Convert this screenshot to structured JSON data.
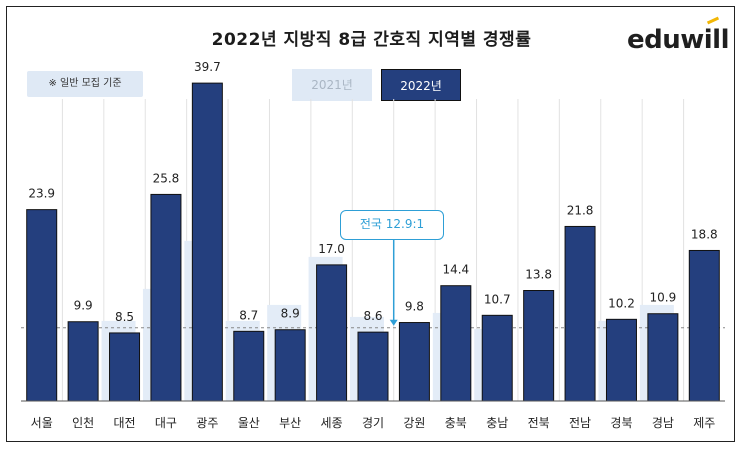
{
  "title": "2022년 지방직 8급 간호직 지역별 경쟁률",
  "logo": "eduwill",
  "note": "※ 일반 모집 기준",
  "legend": {
    "y2021": "2021년",
    "y2022": "2022년"
  },
  "callout": "전국 12.9:1",
  "colors": {
    "bar2022": "#243f7e",
    "bar2021": "#e3ecf7",
    "callout": "#2e9fd6",
    "grid": "#c8c8c8"
  },
  "chart_data": {
    "type": "bar",
    "categories": [
      "서울",
      "인천",
      "대전",
      "대구",
      "광주",
      "울산",
      "부산",
      "세종",
      "경기",
      "강원",
      "충북",
      "충남",
      "전북",
      "전남",
      "경북",
      "경남",
      "제주"
    ],
    "series": [
      {
        "name": "2022년",
        "values": [
          23.9,
          9.9,
          8.5,
          25.8,
          39.7,
          8.7,
          8.9,
          17.0,
          8.6,
          9.8,
          14.4,
          10.7,
          13.8,
          21.8,
          10.2,
          10.9,
          18.8
        ],
        "labels": [
          "23.9",
          "9.9",
          "8.5",
          "25.8",
          "39.7",
          "8.7",
          "8.9",
          "17.0",
          "8.6",
          "9.8",
          "14.4",
          "10.7",
          "13.8",
          "21.8",
          "10.2",
          "10.9",
          "18.8"
        ]
      },
      {
        "name": "2021년",
        "values": [
          null,
          null,
          10.0,
          14.0,
          20.0,
          10.0,
          12.0,
          18.0,
          10.5,
          null,
          11.0,
          9.0,
          null,
          null,
          10.0,
          12.0,
          null
        ]
      }
    ],
    "reference_line": 12.9,
    "ylim": [
      0,
      42
    ]
  }
}
